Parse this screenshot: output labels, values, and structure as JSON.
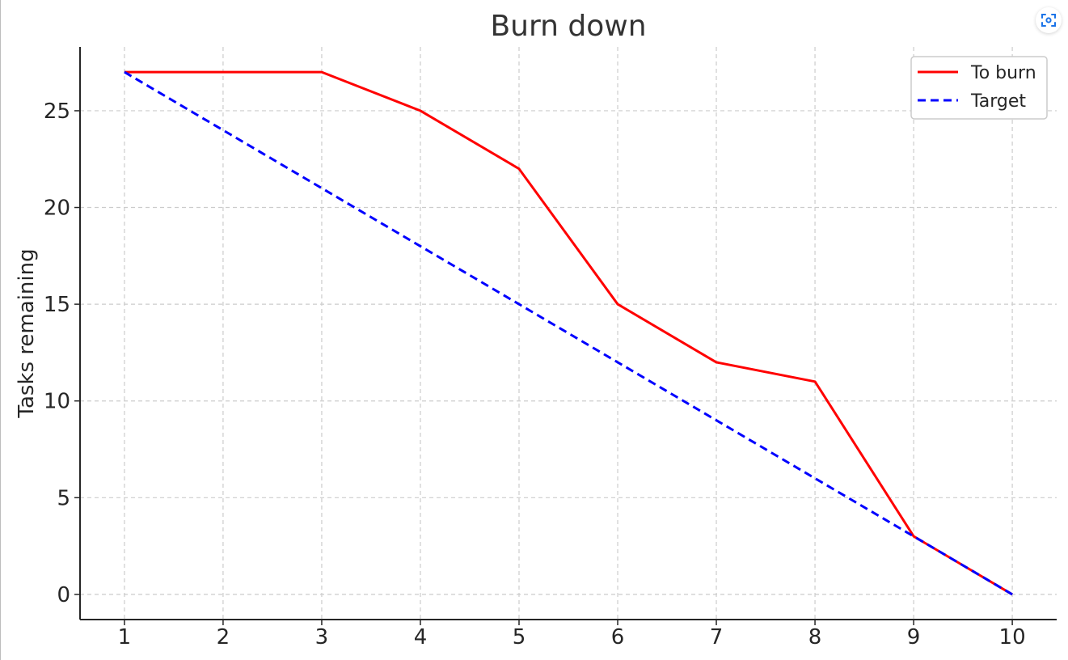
{
  "chart_data": {
    "type": "line",
    "title": "Burn down",
    "xlabel": "",
    "ylabel": "Tasks remaining",
    "x": [
      1,
      2,
      3,
      4,
      5,
      6,
      7,
      8,
      9,
      10
    ],
    "xlim": [
      0.55,
      10.45
    ],
    "ylim": [
      -1.3,
      28.3
    ],
    "xticks": [
      1,
      2,
      3,
      4,
      5,
      6,
      7,
      8,
      9,
      10
    ],
    "yticks": [
      0,
      5,
      10,
      15,
      20,
      25
    ],
    "grid": true,
    "legend_position": "top-right",
    "series": [
      {
        "name": "To burn",
        "color": "#ff0000",
        "style": "solid",
        "values": [
          27,
          27,
          27,
          25,
          22,
          15,
          12,
          11,
          3,
          0
        ]
      },
      {
        "name": "Target",
        "color": "#0000ff",
        "style": "dashed",
        "values": [
          27,
          24,
          21,
          18,
          15,
          12,
          9,
          6,
          3,
          0
        ]
      }
    ]
  },
  "toolbar": {
    "focus_icon": "focus-scan-icon",
    "accent": "#1a73e8"
  }
}
